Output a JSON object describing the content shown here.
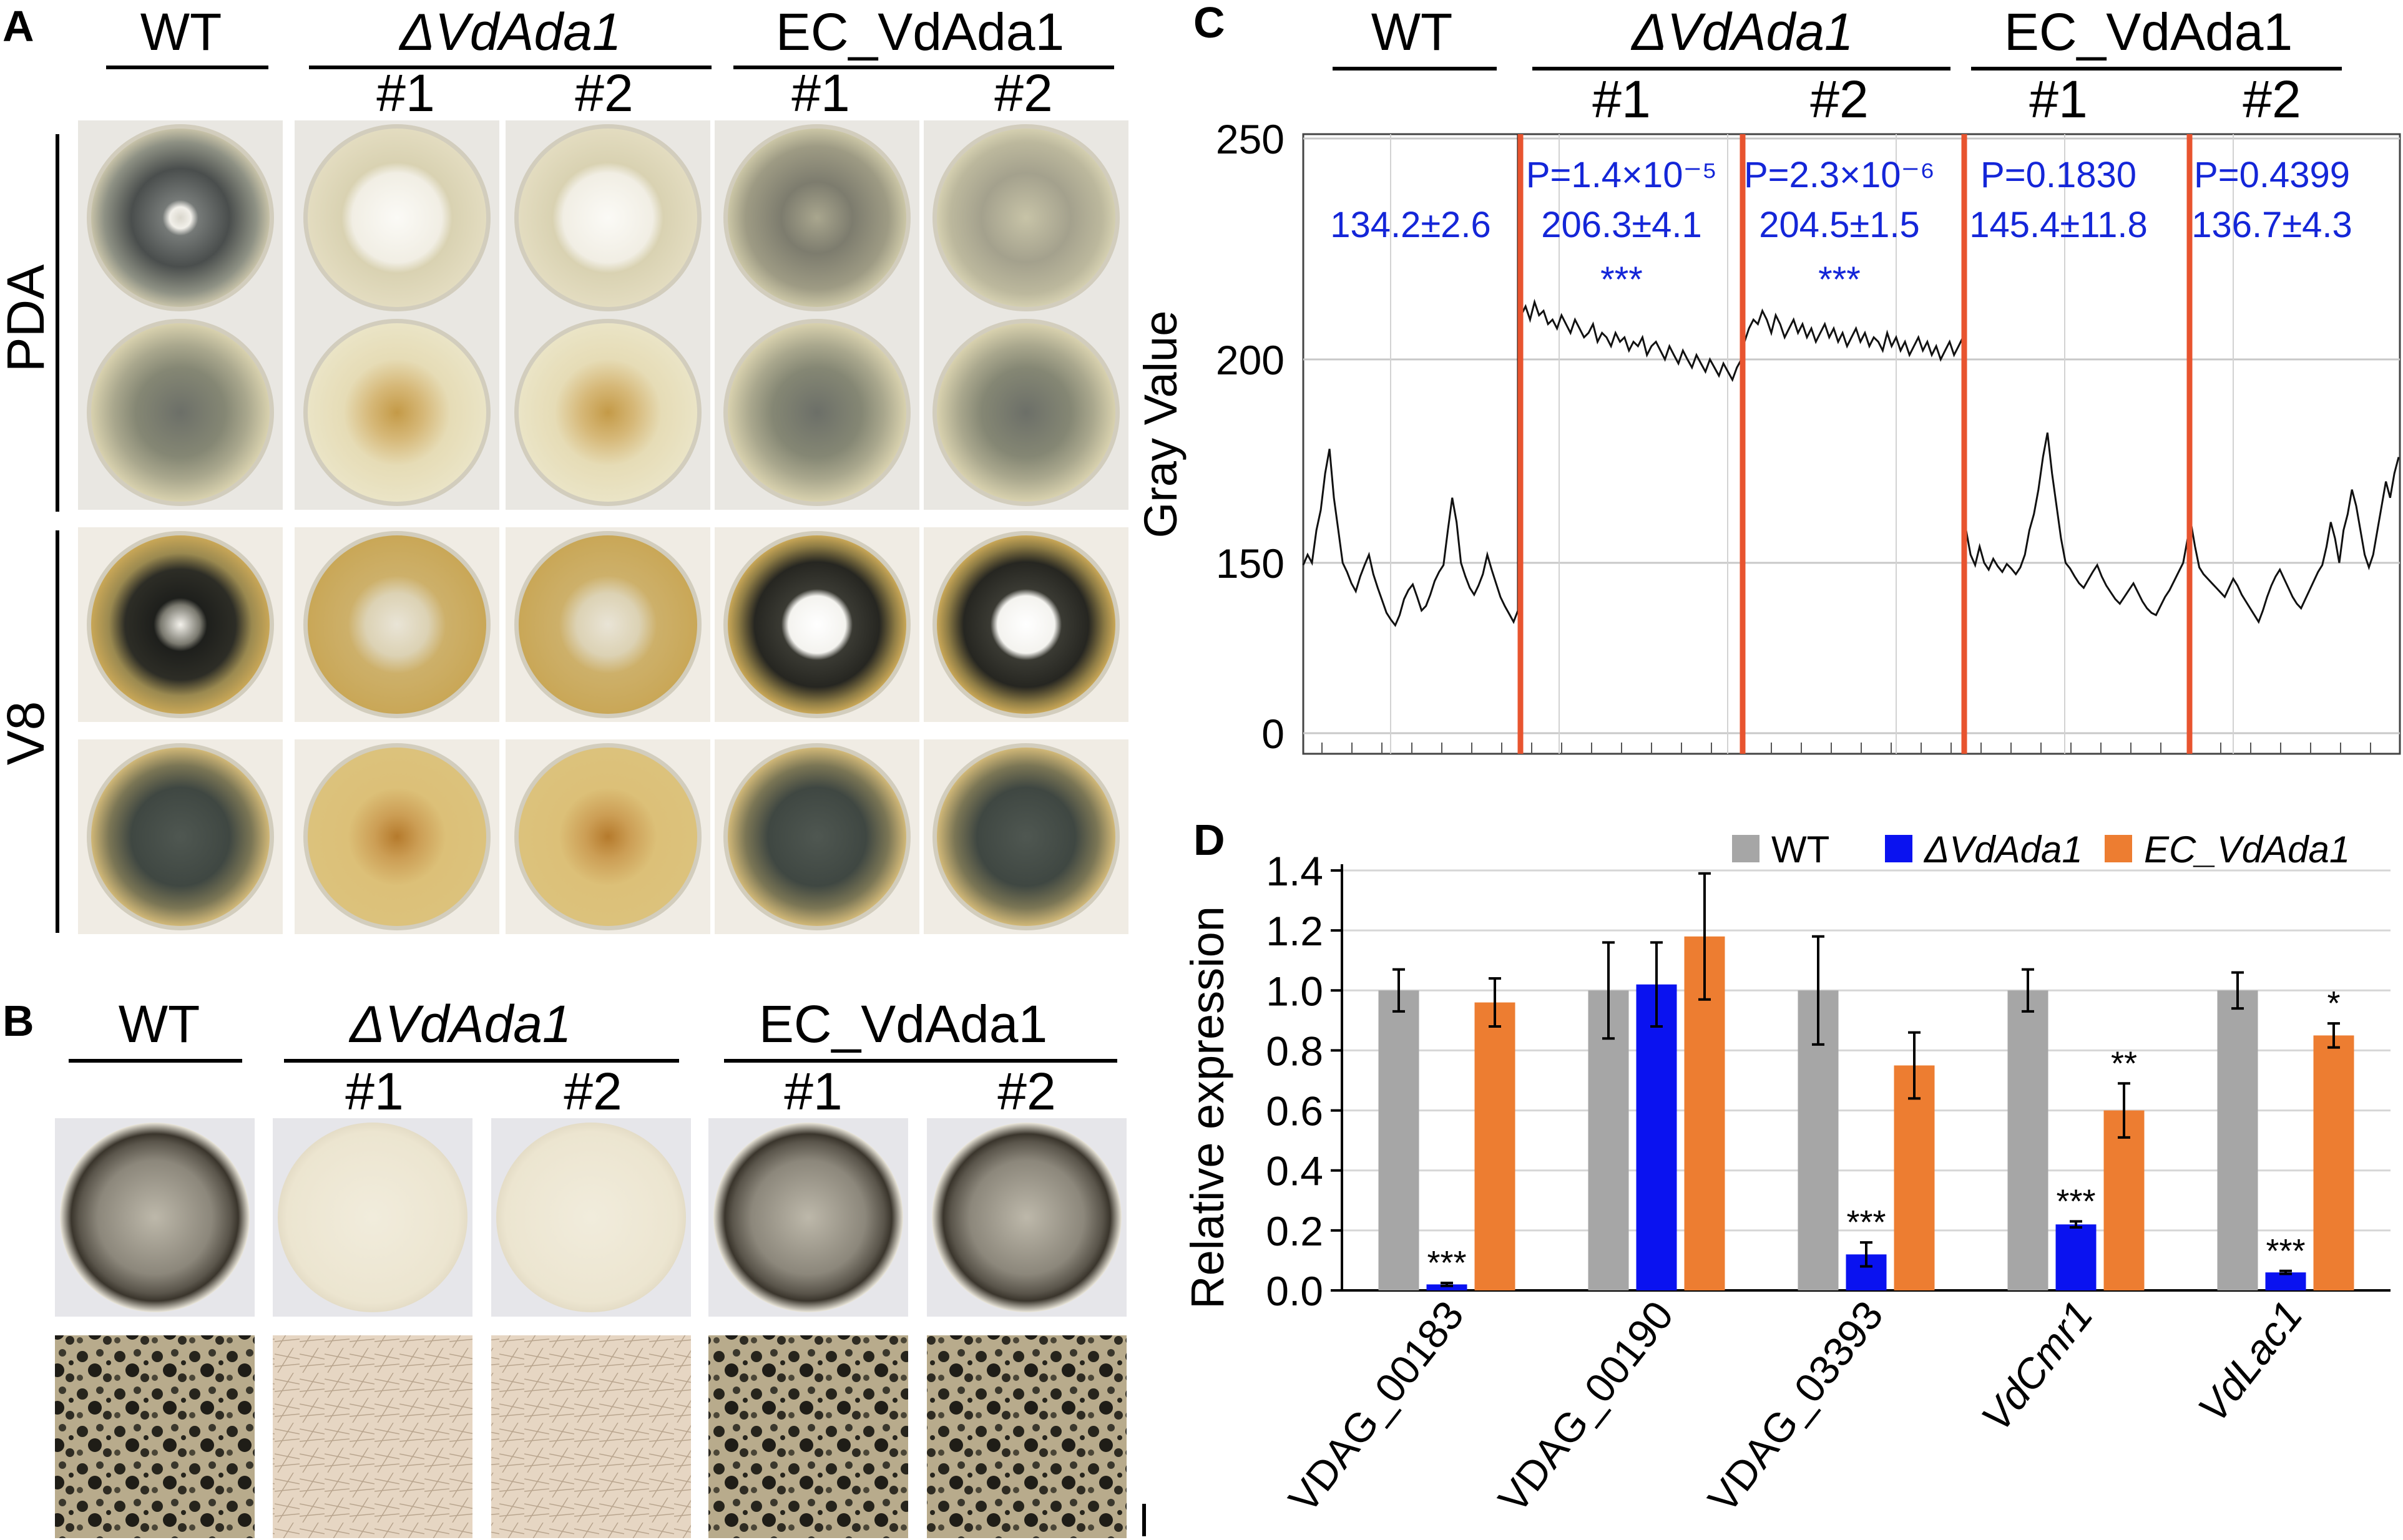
{
  "panels": {
    "a": "A",
    "b": "B",
    "c": "C",
    "d": "D"
  },
  "headers": {
    "wt": "WT",
    "delta": "ΔVdAda1",
    "ec": "EC_VdAda1",
    "r1": "#1",
    "r2": "#2"
  },
  "media": {
    "pda": "PDA",
    "v8": "V8"
  },
  "colors": {
    "wt": "#a6a6a6",
    "delta": "#0a12f0",
    "ec": "#ed7d31",
    "blue_text": "#1426d8",
    "red_line": "#e8542f",
    "plate_dark": "#2e3030",
    "plate_white": "#efeadf",
    "pda_bg": "#d8d2b0",
    "v8_bg": "#c9a757",
    "dish": "#ede9da"
  },
  "plates": {
    "pda_front": [
      {
        "group": "WT",
        "rep": "",
        "style": "dark_ring"
      },
      {
        "group": "ΔVdAda1",
        "rep": "#1",
        "style": "white_center"
      },
      {
        "group": "ΔVdAda1",
        "rep": "#2",
        "style": "white_center"
      },
      {
        "group": "EC_VdAda1",
        "rep": "#1",
        "style": "speckled"
      },
      {
        "group": "EC_VdAda1",
        "rep": "#2",
        "style": "speckled_light"
      }
    ],
    "pda_back": [
      {
        "group": "WT",
        "rep": "",
        "style": "grey_ring"
      },
      {
        "group": "ΔVdAda1",
        "rep": "#1",
        "style": "brown_center"
      },
      {
        "group": "ΔVdAda1",
        "rep": "#2",
        "style": "brown_center"
      },
      {
        "group": "EC_VdAda1",
        "rep": "#1",
        "style": "grey_ring"
      },
      {
        "group": "EC_VdAda1",
        "rep": "#2",
        "style": "grey_ring"
      }
    ],
    "v8_front": [
      {
        "group": "WT",
        "rep": "",
        "style": "black_ring"
      },
      {
        "group": "ΔVdAda1",
        "rep": "#1",
        "style": "pale_center"
      },
      {
        "group": "ΔVdAda1",
        "rep": "#2",
        "style": "pale_center"
      },
      {
        "group": "EC_VdAda1",
        "rep": "#1",
        "style": "black_white"
      },
      {
        "group": "EC_VdAda1",
        "rep": "#2",
        "style": "black_white"
      }
    ],
    "v8_back": [
      {
        "group": "WT",
        "rep": "",
        "style": "dark_disc"
      },
      {
        "group": "ΔVdAda1",
        "rep": "#1",
        "style": "brown_spot"
      },
      {
        "group": "ΔVdAda1",
        "rep": "#2",
        "style": "brown_spot"
      },
      {
        "group": "EC_VdAda1",
        "rep": "#1",
        "style": "dark_disc"
      },
      {
        "group": "EC_VdAda1",
        "rep": "#2",
        "style": "dark_disc"
      }
    ],
    "b_plates": [
      "melanized",
      "white",
      "white",
      "melanized",
      "melanized"
    ],
    "b_micro": [
      "dark",
      "light",
      "light",
      "dark",
      "dark"
    ]
  },
  "chart_data": [
    {
      "panel": "C",
      "type": "line",
      "ylabel": "Gray Value",
      "ylim": [
        0,
        250
      ],
      "yticks": [
        0,
        150,
        200,
        250
      ],
      "grid": true,
      "segments": [
        {
          "group": "WT",
          "rep": "",
          "mean": "134.2±2.6",
          "p": "",
          "sig": "",
          "values": [
            148,
            152,
            150,
            158,
            163,
            172,
            178,
            166,
            158,
            150,
            142,
            132,
            125,
            138,
            148,
            152,
            140,
            128,
            117,
            106,
            100,
            95,
            104,
            118,
            126,
            131,
            120,
            108,
            112,
            122,
            134,
            142,
            148,
            158,
            166,
            160,
            150,
            138,
            128,
            122,
            130,
            140,
            152,
            144,
            132,
            120,
            112,
            105,
            98,
            108
          ]
        },
        {
          "group": "ΔVdAda1",
          "rep": "#1",
          "mean": "206.3±4.1",
          "p": "P=1.4×10⁻⁵",
          "sig": "***",
          "values": [
            210,
            212,
            209,
            213,
            210,
            211,
            208,
            209,
            207,
            210,
            208,
            206,
            209,
            207,
            205,
            206,
            208,
            204,
            206,
            205,
            203,
            206,
            204,
            205,
            202,
            204,
            203,
            205,
            201,
            203,
            204,
            202,
            200,
            203,
            201,
            199,
            202,
            200,
            198,
            201,
            199,
            197,
            200,
            198,
            196,
            199,
            197,
            195,
            198,
            200
          ]
        },
        {
          "group": "ΔVdAda1",
          "rep": "#2",
          "mean": "204.5±1.5",
          "p": "P=2.3×10⁻⁶",
          "sig": "***",
          "values": [
            204,
            207,
            209,
            208,
            211,
            209,
            206,
            210,
            208,
            205,
            207,
            209,
            206,
            208,
            205,
            207,
            204,
            206,
            208,
            205,
            207,
            204,
            206,
            203,
            205,
            207,
            204,
            206,
            203,
            205,
            204,
            202,
            206,
            203,
            205,
            202,
            204,
            201,
            203,
            205,
            202,
            204,
            201,
            203,
            200,
            202,
            204,
            201,
            203,
            205
          ]
        },
        {
          "group": "EC_VdAda1",
          "rep": "#1",
          "mean": "145.4±11.8",
          "p": "P=0.1830",
          "sig": "",
          "values": [
            158,
            152,
            148,
            154,
            150,
            144,
            151,
            147,
            142,
            149,
            145,
            140,
            146,
            152,
            158,
            162,
            168,
            176,
            182,
            172,
            164,
            156,
            150,
            145,
            138,
            132,
            128,
            135,
            142,
            148,
            138,
            130,
            124,
            118,
            114,
            120,
            126,
            132,
            124,
            116,
            110,
            106,
            104,
            112,
            120,
            126,
            134,
            142,
            150,
            156
          ]
        },
        {
          "group": "EC_VdAda1",
          "rep": "#2",
          "mean": "136.7±4.3",
          "p": "P=0.4399",
          "sig": "",
          "values": [
            160,
            154,
            146,
            140,
            136,
            132,
            128,
            124,
            120,
            128,
            136,
            130,
            122,
            116,
            110,
            104,
            98,
            108,
            120,
            130,
            138,
            144,
            136,
            128,
            120,
            114,
            110,
            118,
            126,
            134,
            142,
            148,
            154,
            160,
            156,
            150,
            158,
            162,
            168,
            164,
            158,
            152,
            146,
            152,
            158,
            164,
            170,
            166,
            172,
            176
          ]
        }
      ]
    },
    {
      "panel": "D",
      "type": "bar",
      "title": "",
      "xlabel": "",
      "ylabel": "Relative expression",
      "ylim": [
        0,
        1.4
      ],
      "yticks": [
        0,
        0.2,
        0.4,
        0.6,
        0.8,
        1.0,
        1.2,
        1.4
      ],
      "categories": [
        "VDAG_00183",
        "VDAG_00190",
        "VDAG_03393",
        "VdCmr1",
        "VdLac1"
      ],
      "italic_categories": [
        false,
        false,
        false,
        true,
        true
      ],
      "legend": {
        "position": "top",
        "entries": [
          "WT",
          "ΔVdAda1",
          "EC_VdAda1"
        ]
      },
      "series": [
        {
          "name": "WT",
          "values": [
            1.0,
            1.0,
            1.0,
            1.0,
            1.0
          ],
          "errors": [
            0.07,
            0.16,
            0.18,
            0.07,
            0.06
          ],
          "sig": [
            "",
            "",
            "",
            "",
            ""
          ]
        },
        {
          "name": "ΔVdAda1",
          "values": [
            0.02,
            1.02,
            0.12,
            0.22,
            0.06
          ],
          "errors": [
            0.005,
            0.14,
            0.04,
            0.01,
            0.005
          ],
          "sig": [
            "***",
            "",
            "***",
            "***",
            "***"
          ]
        },
        {
          "name": "EC_VdAda1",
          "values": [
            0.96,
            1.18,
            0.75,
            0.6,
            0.85
          ],
          "errors": [
            0.08,
            0.21,
            0.11,
            0.09,
            0.04
          ],
          "sig": [
            "",
            "",
            "",
            "**",
            "*"
          ]
        }
      ]
    }
  ]
}
